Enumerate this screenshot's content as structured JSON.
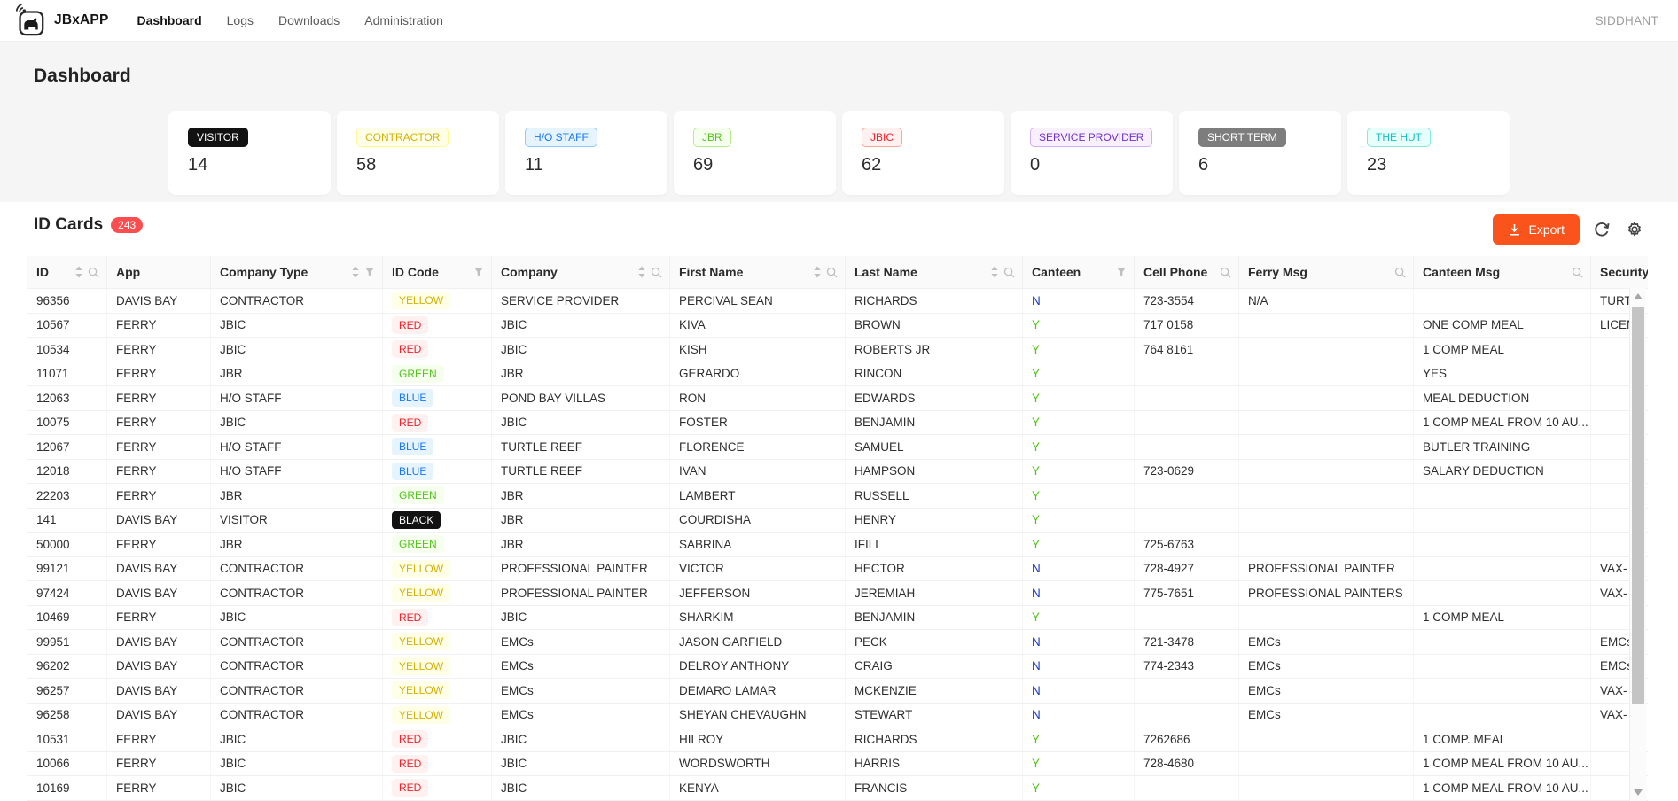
{
  "navbar": {
    "app_name": "JBxAPP",
    "items": [
      {
        "label": "Dashboard",
        "active": true
      },
      {
        "label": "Logs",
        "active": false
      },
      {
        "label": "Downloads",
        "active": false
      },
      {
        "label": "Administration",
        "active": false
      }
    ],
    "user": "SIDDHANT"
  },
  "page_title": "Dashboard",
  "stat_cards": [
    {
      "label": "VISITOR",
      "color": "black",
      "value": "14"
    },
    {
      "label": "CONTRACTOR",
      "color": "yellow",
      "value": "58"
    },
    {
      "label": "H/O STAFF",
      "color": "blue",
      "value": "11"
    },
    {
      "label": "JBR",
      "color": "green",
      "value": "69"
    },
    {
      "label": "JBIC",
      "color": "red",
      "value": "62"
    },
    {
      "label": "SERVICE PROVIDER",
      "color": "purple",
      "value": "0"
    },
    {
      "label": "SHORT TERM",
      "color": "gray",
      "value": "6"
    },
    {
      "label": "THE HUT",
      "color": "cyan",
      "value": "23"
    }
  ],
  "id_cards": {
    "title": "ID Cards",
    "count": "243",
    "export_label": "Export"
  },
  "table": {
    "columns": [
      {
        "label": "ID",
        "sorter": true,
        "search": true,
        "filter": false
      },
      {
        "label": "App",
        "sorter": false,
        "search": false,
        "filter": false
      },
      {
        "label": "Company Type",
        "sorter": true,
        "search": false,
        "filter": true
      },
      {
        "label": "ID Code",
        "sorter": false,
        "search": false,
        "filter": true
      },
      {
        "label": "Company",
        "sorter": true,
        "search": true,
        "filter": false
      },
      {
        "label": "First Name",
        "sorter": true,
        "search": true,
        "filter": false
      },
      {
        "label": "Last Name",
        "sorter": true,
        "search": true,
        "filter": false
      },
      {
        "label": "Canteen",
        "sorter": false,
        "search": false,
        "filter": true
      },
      {
        "label": "Cell Phone",
        "sorter": false,
        "search": true,
        "filter": false
      },
      {
        "label": "Ferry Msg",
        "sorter": false,
        "search": true,
        "filter": false
      },
      {
        "label": "Canteen Msg",
        "sorter": false,
        "search": true,
        "filter": false
      },
      {
        "label": "Security",
        "sorter": false,
        "search": false,
        "filter": false
      }
    ],
    "rows": [
      {
        "id": "96356",
        "app": "DAVIS BAY",
        "company_type": "CONTRACTOR",
        "id_code": "YELLOW",
        "company": "SERVICE PROVIDER",
        "first_name": "PERCIVAL SEAN",
        "last_name": "RICHARDS",
        "canteen": "N",
        "cell_phone": "723-3554",
        "ferry_msg": "N/A",
        "canteen_msg": "",
        "security": "TURT"
      },
      {
        "id": "10567",
        "app": "FERRY",
        "company_type": "JBIC",
        "id_code": "RED",
        "company": "JBIC",
        "first_name": "KIVA",
        "last_name": "BROWN",
        "canteen": "Y",
        "cell_phone": "717 0158",
        "ferry_msg": "",
        "canteen_msg": "ONE COMP MEAL",
        "security": "LICEN"
      },
      {
        "id": "10534",
        "app": "FERRY",
        "company_type": "JBIC",
        "id_code": "RED",
        "company": "JBIC",
        "first_name": "KISH",
        "last_name": "ROBERTS JR",
        "canteen": "Y",
        "cell_phone": "764 8161",
        "ferry_msg": "",
        "canteen_msg": "1 COMP MEAL",
        "security": ""
      },
      {
        "id": "11071",
        "app": "FERRY",
        "company_type": "JBR",
        "id_code": "GREEN",
        "company": "JBR",
        "first_name": "GERARDO",
        "last_name": "RINCON",
        "canteen": "Y",
        "cell_phone": "",
        "ferry_msg": "",
        "canteen_msg": "YES",
        "security": ""
      },
      {
        "id": "12063",
        "app": "FERRY",
        "company_type": "H/O STAFF",
        "id_code": "BLUE",
        "company": "POND BAY VILLAS",
        "first_name": "RON",
        "last_name": "EDWARDS",
        "canteen": "Y",
        "cell_phone": "",
        "ferry_msg": "",
        "canteen_msg": "MEAL DEDUCTION",
        "security": ""
      },
      {
        "id": "10075",
        "app": "FERRY",
        "company_type": "JBIC",
        "id_code": "RED",
        "company": "JBIC",
        "first_name": "FOSTER",
        "last_name": "BENJAMIN",
        "canteen": "Y",
        "cell_phone": "",
        "ferry_msg": "",
        "canteen_msg": "1 COMP MEAL FROM 10 AU...",
        "security": ""
      },
      {
        "id": "12067",
        "app": "FERRY",
        "company_type": "H/O STAFF",
        "id_code": "BLUE",
        "company": "TURTLE REEF",
        "first_name": "FLORENCE",
        "last_name": "SAMUEL",
        "canteen": "Y",
        "cell_phone": "",
        "ferry_msg": "",
        "canteen_msg": "BUTLER TRAINING",
        "security": ""
      },
      {
        "id": "12018",
        "app": "FERRY",
        "company_type": "H/O STAFF",
        "id_code": "BLUE",
        "company": "TURTLE REEF",
        "first_name": "IVAN",
        "last_name": "HAMPSON",
        "canteen": "Y",
        "cell_phone": "723-0629",
        "ferry_msg": "",
        "canteen_msg": "SALARY DEDUCTION",
        "security": ""
      },
      {
        "id": "22203",
        "app": "FERRY",
        "company_type": "JBR",
        "id_code": "GREEN",
        "company": "JBR",
        "first_name": "LAMBERT",
        "last_name": "RUSSELL",
        "canteen": "Y",
        "cell_phone": "",
        "ferry_msg": "",
        "canteen_msg": "",
        "security": ""
      },
      {
        "id": "141",
        "app": "DAVIS BAY",
        "company_type": "VISITOR",
        "id_code": "BLACK",
        "company": "JBR",
        "first_name": "COURDISHA",
        "last_name": "HENRY",
        "canteen": "Y",
        "cell_phone": "",
        "ferry_msg": "",
        "canteen_msg": "",
        "security": ""
      },
      {
        "id": "50000",
        "app": "FERRY",
        "company_type": "JBR",
        "id_code": "GREEN",
        "company": "JBR",
        "first_name": "SABRINA",
        "last_name": "IFILL",
        "canteen": "Y",
        "cell_phone": "725-6763",
        "ferry_msg": "",
        "canteen_msg": "",
        "security": ""
      },
      {
        "id": "99121",
        "app": "DAVIS BAY",
        "company_type": "CONTRACTOR",
        "id_code": "YELLOW",
        "company": "PROFESSIONAL PAINTER",
        "first_name": "VICTOR",
        "last_name": "HECTOR",
        "canteen": "N",
        "cell_phone": "728-4927",
        "ferry_msg": "PROFESSIONAL PAINTER",
        "canteen_msg": "",
        "security": "VAX-"
      },
      {
        "id": "97424",
        "app": "DAVIS BAY",
        "company_type": "CONTRACTOR",
        "id_code": "YELLOW",
        "company": "PROFESSIONAL PAINTER",
        "first_name": "JEFFERSON",
        "last_name": "JEREMIAH",
        "canteen": "N",
        "cell_phone": "775-7651",
        "ferry_msg": "PROFESSIONAL PAINTERS",
        "canteen_msg": "",
        "security": "VAX-"
      },
      {
        "id": "10469",
        "app": "FERRY",
        "company_type": "JBIC",
        "id_code": "RED",
        "company": "JBIC",
        "first_name": "SHARKIM",
        "last_name": "BENJAMIN",
        "canteen": "Y",
        "cell_phone": "",
        "ferry_msg": "",
        "canteen_msg": "1 COMP MEAL",
        "security": ""
      },
      {
        "id": "99951",
        "app": "DAVIS BAY",
        "company_type": "CONTRACTOR",
        "id_code": "YELLOW",
        "company": "EMCs",
        "first_name": "JASON GARFIELD",
        "last_name": "PECK",
        "canteen": "N",
        "cell_phone": "721-3478",
        "ferry_msg": "EMCs",
        "canteen_msg": "",
        "security": "EMCs"
      },
      {
        "id": "96202",
        "app": "DAVIS BAY",
        "company_type": "CONTRACTOR",
        "id_code": "YELLOW",
        "company": "EMCs",
        "first_name": "DELROY ANTHONY",
        "last_name": "CRAIG",
        "canteen": "N",
        "cell_phone": "774-2343",
        "ferry_msg": "EMCs",
        "canteen_msg": "",
        "security": "EMCs"
      },
      {
        "id": "96257",
        "app": "DAVIS BAY",
        "company_type": "CONTRACTOR",
        "id_code": "YELLOW",
        "company": "EMCs",
        "first_name": "DEMARO LAMAR",
        "last_name": "MCKENZIE",
        "canteen": "N",
        "cell_phone": "",
        "ferry_msg": "EMCs",
        "canteen_msg": "",
        "security": "VAX-"
      },
      {
        "id": "96258",
        "app": "DAVIS BAY",
        "company_type": "CONTRACTOR",
        "id_code": "YELLOW",
        "company": "EMCs",
        "first_name": "SHEYAN CHEVAUGHN",
        "last_name": "STEWART",
        "canteen": "N",
        "cell_phone": "",
        "ferry_msg": "EMCs",
        "canteen_msg": "",
        "security": "VAX-"
      },
      {
        "id": "10531",
        "app": "FERRY",
        "company_type": "JBIC",
        "id_code": "RED",
        "company": "JBIC",
        "first_name": "HILROY",
        "last_name": "RICHARDS",
        "canteen": "Y",
        "cell_phone": "7262686",
        "ferry_msg": "",
        "canteen_msg": "1 COMP. MEAL",
        "security": ""
      },
      {
        "id": "10066",
        "app": "FERRY",
        "company_type": "JBIC",
        "id_code": "RED",
        "company": "JBIC",
        "first_name": "WORDSWORTH",
        "last_name": "HARRIS",
        "canteen": "Y",
        "cell_phone": "728-4680",
        "ferry_msg": "",
        "canteen_msg": "1 COMP MEAL FROM 10 AU...",
        "security": ""
      },
      {
        "id": "10169",
        "app": "FERRY",
        "company_type": "JBIC",
        "id_code": "RED",
        "company": "JBIC",
        "first_name": "KENYA",
        "last_name": "FRANCIS",
        "canteen": "Y",
        "cell_phone": "",
        "ferry_msg": "",
        "canteen_msg": "1 COMP MEAL FROM 10 AU...",
        "security": ""
      }
    ]
  },
  "colors": {
    "accent": "#fa541c",
    "count_badge": "#ff4d4f",
    "canteen_yes": "#52c41a",
    "canteen_no": "#1d39c4"
  }
}
